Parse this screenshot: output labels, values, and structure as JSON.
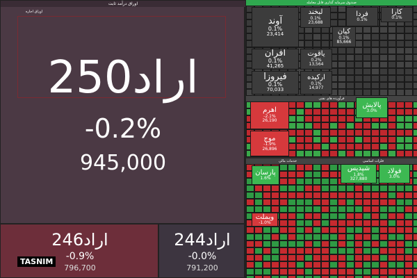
{
  "main_tile": {
    "header": "اوراق درآمد ثابت",
    "subheader": "اوراق اجاره",
    "symbol": "اراد250",
    "change": "-0.2%",
    "price": "945,000"
  },
  "bottom_tiles": [
    {
      "symbol": "اراد246",
      "change": "-0.9%",
      "price": "796,700"
    },
    {
      "symbol": "اراد244",
      "change": "-0.0%",
      "price": "791,200"
    }
  ],
  "logo": "TASNIM",
  "treemap": {
    "sections": [
      "صندوق سرمایه گذاری قابل معامله",
      "فرآورده های نفتی",
      "خدمات مالی",
      "فلزات اساسی"
    ],
    "tiles": [
      {
        "symbol": "آوند",
        "change": "0.1%",
        "price": "23,414"
      },
      {
        "symbol": "لبخند",
        "change": "0.1%",
        "price": "23,688"
      },
      {
        "symbol": "کیان",
        "change": "0.1%",
        "price": "85,666"
      },
      {
        "symbol": "فردا",
        "change": "0.1%"
      },
      {
        "symbol": "کارا",
        "change": "0.1%"
      },
      {
        "symbol": "افران",
        "change": "0.1%",
        "price": "41,265"
      },
      {
        "symbol": "یاقوت",
        "change": "0.2%",
        "price": "13,564"
      },
      {
        "symbol": "فیروزا",
        "change": "0.1%",
        "price": "70,033"
      },
      {
        "symbol": "ارکیده",
        "change": "0.1%",
        "price": "14,977"
      },
      {
        "symbol": "اهرم",
        "change": "-2.1%",
        "price": "26,190"
      },
      {
        "symbol": "موج",
        "change": "-1.9%",
        "price": "26,896"
      },
      {
        "symbol": "پالایش",
        "change": "3.0%"
      },
      {
        "symbol": "پارسان",
        "change": "1.6%"
      },
      {
        "symbol": "شپدیس",
        "change": "1.8%",
        "price": "327,880"
      },
      {
        "symbol": "فولاد",
        "change": "3.0%"
      },
      {
        "symbol": "وبملت",
        "change": "-1.0%"
      }
    ]
  }
}
